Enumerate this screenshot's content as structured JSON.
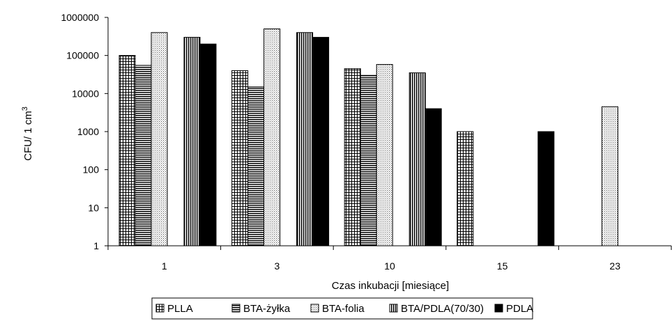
{
  "chart_data": {
    "type": "bar",
    "title": "",
    "xlabel": "Czas inkubacji [miesiące]",
    "ylabel": "CFU/ 1 cm",
    "ylabel_superscript": "3",
    "yscale": "log",
    "ylim": [
      1,
      1000000
    ],
    "yticks": [
      "1",
      "10",
      "100",
      "1000",
      "10000",
      "100000",
      "1000000"
    ],
    "grid": false,
    "legend_position": "bottom",
    "categories": [
      "1",
      "3",
      "10",
      "15",
      "23"
    ],
    "series": [
      {
        "name": "PLLA",
        "pattern": "grid",
        "values": [
          100000,
          40000,
          45000,
          1000,
          null
        ]
      },
      {
        "name": "BTA-żyłka",
        "pattern": "hlines",
        "values": [
          55000,
          15000,
          30000,
          null,
          null
        ]
      },
      {
        "name": "BTA-folia",
        "pattern": "dots",
        "values": [
          400000,
          500000,
          58000,
          null,
          4500
        ]
      },
      {
        "name": "BTA/PDLA(70/30)",
        "pattern": "vlines",
        "values": [
          300000,
          400000,
          35000,
          null,
          null
        ]
      },
      {
        "name": "PDLA",
        "pattern": "solid",
        "values": [
          200000,
          300000,
          4000,
          1000,
          null
        ]
      }
    ]
  }
}
